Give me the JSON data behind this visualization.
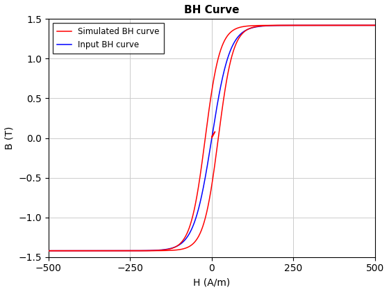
{
  "title": "BH Curve",
  "xlabel": "H (A/m)",
  "ylabel": "B (T)",
  "xlim": [
    -500,
    500
  ],
  "ylim": [
    -1.5,
    1.5
  ],
  "yticks": [
    -1.5,
    -1.0,
    -0.5,
    0.0,
    0.5,
    1.0,
    1.5
  ],
  "xticks": [
    -500,
    -250,
    0,
    250,
    500
  ],
  "legend_labels": [
    "Simulated BH curve",
    "Input BH curve"
  ],
  "simulated_color": "#FF0000",
  "input_color": "#0000FF",
  "background_color": "#ffffff",
  "grid_color": "#cccccc",
  "line_width": 1.1,
  "title_fontsize": 11,
  "label_fontsize": 10
}
